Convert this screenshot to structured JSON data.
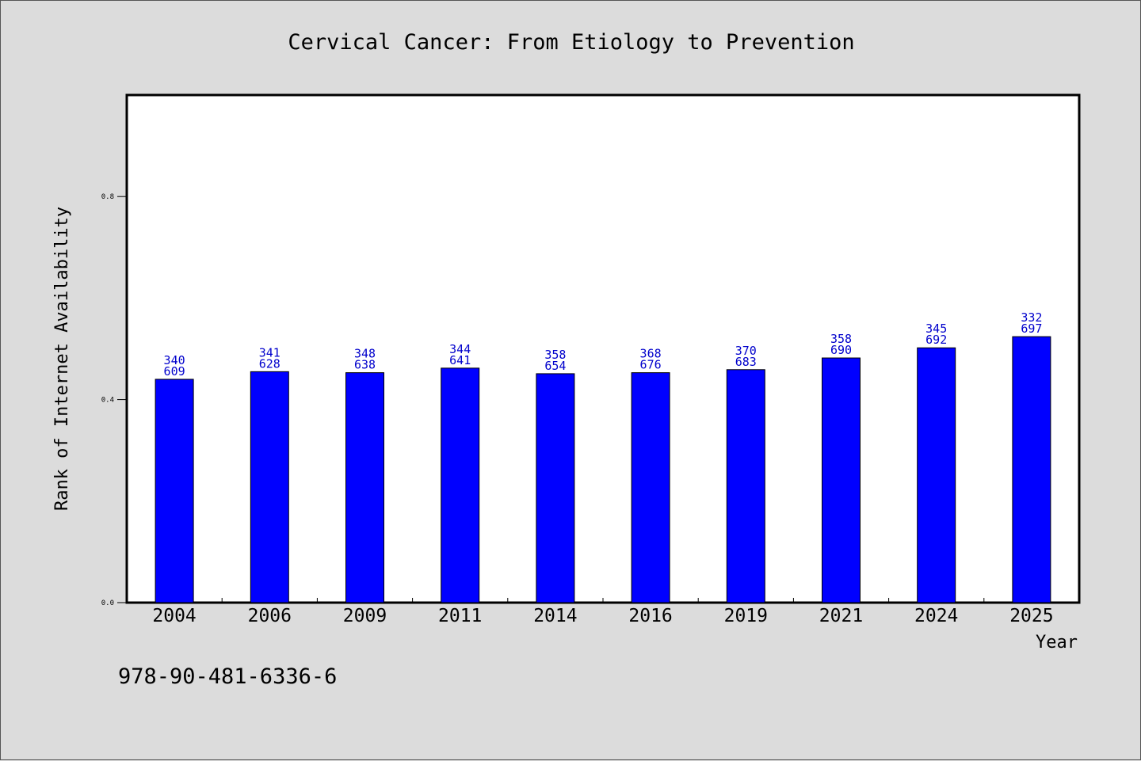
{
  "chart_data": {
    "type": "bar",
    "title": "Cervical Cancer: From Etiology to Prevention",
    "xlabel": "Year",
    "ylabel": "Rank of Internet Availability",
    "categories": [
      "2004",
      "2006",
      "2009",
      "2011",
      "2014",
      "2016",
      "2019",
      "2021",
      "2024",
      "2025"
    ],
    "values": [
      0.44,
      0.455,
      0.453,
      0.462,
      0.451,
      0.453,
      0.459,
      0.482,
      0.502,
      0.524
    ],
    "bar_labels_top": [
      "340",
      "341",
      "348",
      "344",
      "358",
      "368",
      "370",
      "358",
      "345",
      "332"
    ],
    "bar_labels_bottom": [
      "609",
      "628",
      "638",
      "641",
      "654",
      "676",
      "683",
      "690",
      "692",
      "697"
    ],
    "yticks": [
      0.0,
      0.4,
      0.8
    ],
    "ytick_labels": [
      "0.0",
      "0.4",
      "0.8"
    ],
    "ylim": [
      0,
      1.0
    ],
    "grid": false,
    "bar_color": "#0000ff",
    "label_color": "#0000cc"
  },
  "footer": {
    "isbn": "978-90-481-6336-6"
  }
}
